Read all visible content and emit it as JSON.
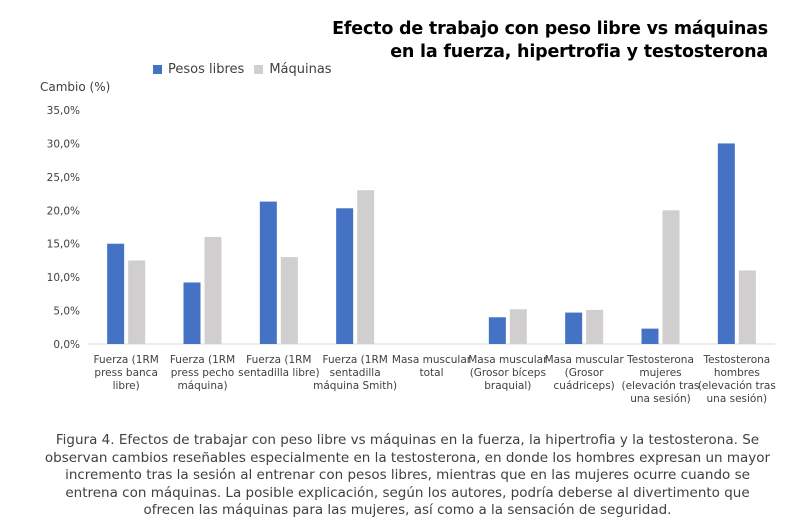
{
  "title_line1": "Efecto de trabajo con peso libre vs máquinas",
  "title_line2": "en la fuerza, hipertrofia y testosterona",
  "caption": "Figura 4. Efectos de trabajar con peso libre vs máquinas en la fuerza, la hipertrofia y la testosterona. Se observan cambios reseñables especialmente en la testosterona, en donde los hombres expresan un mayor incremento tras la sesión al entrenar con pesos libres, mientras que en las mujeres ocurre cuando se entrena con máquinas. La posible explicación, según los autores, podría deberse al divertimento que ofrecen las máquinas para las mujeres, así como a la sensación de seguridad.",
  "chart_data": {
    "type": "bar",
    "title": "Efecto de trabajo con peso libre vs máquinas en la fuerza, hipertrofia y testosterona",
    "ylabel": "Cambio (%)",
    "xlabel": "",
    "ylim": [
      0,
      35
    ],
    "yticks": [
      "0,0%",
      "5,0%",
      "10,0%",
      "15,0%",
      "20,0%",
      "25,0%",
      "30,0%",
      "35,0%"
    ],
    "grid": true,
    "legend_position": "top-left",
    "categories": [
      "Fuerza (1RM press banca libre)",
      "Fuerza (1RM press pecho máquina)",
      "Fuerza (1RM sentadilla libre)",
      "Fuerza (1RM sentadilla máquina Smith)",
      "Masa muscular total",
      "Masa muscular (Grosor bíceps braquial)",
      "Masa muscular (Grosor cuádriceps)",
      "Testosterona mujeres (elevación tras una sesión)",
      "Testosterona hombres (elevación tras una sesión)"
    ],
    "series": [
      {
        "name": "Pesos libres",
        "color": "#4472C4",
        "values": [
          15.0,
          9.2,
          21.3,
          20.3,
          0,
          4.0,
          4.7,
          2.3,
          30.0
        ]
      },
      {
        "name": "Máquinas",
        "color": "#D0CECE",
        "values": [
          12.5,
          16.0,
          13.0,
          23.0,
          0,
          5.2,
          5.1,
          20.0,
          11.0
        ]
      }
    ]
  }
}
